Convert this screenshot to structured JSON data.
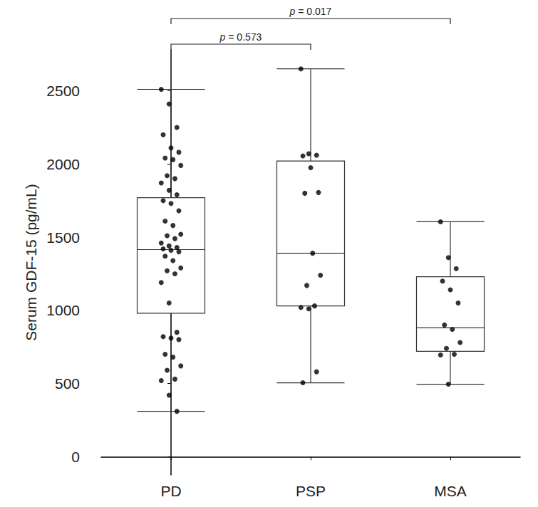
{
  "chart_data": {
    "type": "boxplot",
    "y_label": "Serum GDF-15 (pg/mL)",
    "categories": [
      "PD",
      "PSP",
      "MSA"
    ],
    "boxes": [
      {
        "min": 310,
        "q1": 980,
        "median": 1415,
        "q3": 1770,
        "max": 2510
      },
      {
        "min": 505,
        "q1": 1030,
        "median": 1390,
        "q3": 2020,
        "max": 2650
      },
      {
        "min": 495,
        "q1": 720,
        "median": 880,
        "q3": 1230,
        "max": 1605
      }
    ],
    "points": [
      [
        2510,
        2410,
        2250,
        2200,
        2110,
        2080,
        2040,
        2030,
        1990,
        1920,
        1900,
        1870,
        1820,
        1790,
        1750,
        1730,
        1680,
        1610,
        1580,
        1520,
        1510,
        1490,
        1460,
        1440,
        1430,
        1420,
        1410,
        1400,
        1370,
        1340,
        1290,
        1270,
        1250,
        1190,
        1050,
        850,
        820,
        810,
        800,
        700,
        680,
        620,
        590,
        530,
        520,
        420,
        310
      ],
      [
        2650,
        2070,
        2060,
        2055,
        1975,
        1805,
        1800,
        1390,
        1240,
        1170,
        1030,
        1020,
        1010,
        580,
        505
      ],
      [
        1605,
        1360,
        1285,
        1200,
        1140,
        1050,
        900,
        870,
        780,
        740,
        700,
        695,
        495
      ]
    ],
    "color": "#000000",
    "marker": "circle",
    "comparisons": [
      {
        "from": "PD",
        "to": "PSP",
        "label": "p = 0.573"
      },
      {
        "from": "PD",
        "to": "MSA",
        "label": "p = 0.017"
      }
    ],
    "ylim": [
      -125,
      2780
    ],
    "yticks": [
      0,
      500,
      1000,
      1500,
      2000,
      2500
    ],
    "grid": false
  }
}
